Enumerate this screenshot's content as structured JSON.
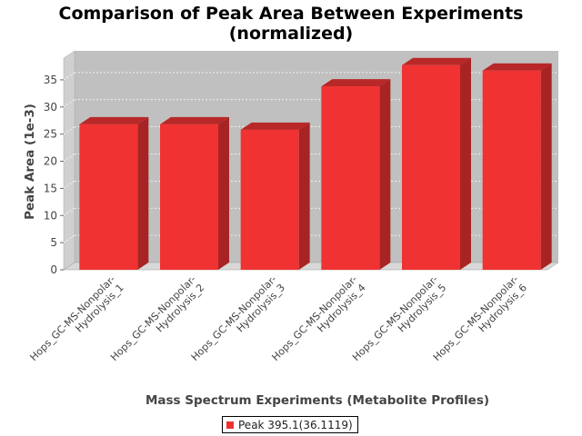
{
  "chart_data": {
    "type": "bar",
    "title_line1": "Comparison of Peak Area Between Experiments",
    "title_line2": "(normalized)",
    "xlabel": "Mass Spectrum Experiments (Metabolite Profiles)",
    "ylabel": "Peak Area (1e-3)",
    "ylim": [
      0,
      39
    ],
    "yticks": [
      0,
      5,
      10,
      15,
      20,
      25,
      30,
      35
    ],
    "grid": true,
    "legend_position": "bottom",
    "categories": [
      [
        "Hops_GC-MS-Nonpolar-",
        "Hydrolysis_1"
      ],
      [
        "Hops_GC-MS-Nonpolar-",
        "Hydrolysis_2"
      ],
      [
        "Hops_GC-MS-Nonpolar-",
        "Hydrolysis_3"
      ],
      [
        "Hops_GC-MS-Nonpolar-",
        "Hydrolysis_4"
      ],
      [
        "Hops_GC-MS-Nonpolar-",
        "Hydrolysis_5"
      ],
      [
        "Hops_GC-MS-Nonpolar-",
        "Hydrolysis_6"
      ]
    ],
    "series": [
      {
        "name": "Peak 395.1(36.1119)",
        "values": [
          26.8,
          26.8,
          25.8,
          33.8,
          37.7,
          36.7
        ]
      }
    ],
    "colors": {
      "bar_front": "#f03232",
      "bar_top": "#b82828",
      "bar_side": "#a82424",
      "plot_back": "#c0c0c0",
      "plot_floor": "#d8d8d8",
      "plot_wall": "#d0d0d0"
    }
  }
}
